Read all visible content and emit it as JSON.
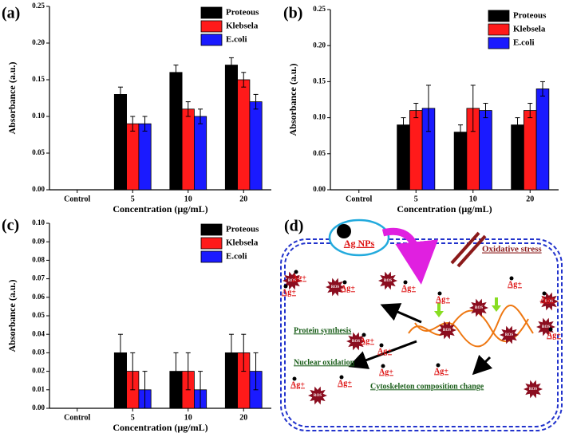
{
  "chart_data": [
    {
      "type": "bar",
      "panel_label": "(a)",
      "xlabel": "Concentration (µg/mL)",
      "ylabel": "Absorbance (a.u.)",
      "categories": [
        "Control",
        "5",
        "10",
        "20"
      ],
      "series": [
        {
          "name": "Proteous",
          "color": "#000000",
          "values": [
            0,
            0.13,
            0.16,
            0.17
          ],
          "errors": [
            0,
            0.01,
            0.01,
            0.01
          ]
        },
        {
          "name": "Klebsela",
          "color": "#ff1a1a",
          "values": [
            0,
            0.09,
            0.11,
            0.15
          ],
          "errors": [
            0,
            0.01,
            0.01,
            0.01
          ]
        },
        {
          "name": "E.coli",
          "color": "#1a1aff",
          "values": [
            0,
            0.09,
            0.1,
            0.12
          ],
          "errors": [
            0,
            0.01,
            0.01,
            0.01
          ]
        }
      ],
      "ylim": [
        0,
        0.25
      ],
      "yticks": [
        {
          "value": 0,
          "label": "0.00"
        },
        {
          "value": 0.05,
          "label": "0.05"
        },
        {
          "value": 0.1,
          "label": "0.10"
        },
        {
          "value": 0.15,
          "label": "0.15"
        },
        {
          "value": 0.2,
          "label": "0.20"
        },
        {
          "value": 0.25,
          "label": "0.25"
        }
      ],
      "legend": "top-right"
    },
    {
      "type": "bar",
      "panel_label": "(b)",
      "xlabel": "Concentration (µg/mL)",
      "ylabel": "Absorbance (a.u.)",
      "categories": [
        "Control",
        "5",
        "10",
        "20"
      ],
      "series": [
        {
          "name": "Proteous",
          "color": "#000000",
          "values": [
            0,
            0.09,
            0.08,
            0.09
          ],
          "errors": [
            0,
            0.01,
            0.01,
            0.01
          ]
        },
        {
          "name": "Klebsela",
          "color": "#ff1a1a",
          "values": [
            0,
            0.11,
            0.113,
            0.11
          ],
          "errors": [
            0,
            0.01,
            0.032,
            0.01
          ]
        },
        {
          "name": "E.coli",
          "color": "#1a1aff",
          "values": [
            0,
            0.113,
            0.11,
            0.14
          ],
          "errors": [
            0,
            0.032,
            0.01,
            0.01
          ]
        }
      ],
      "ylim": [
        0,
        0.25
      ],
      "yticks": [
        {
          "value": 0,
          "label": "0.00"
        },
        {
          "value": 0.05,
          "label": "0.05"
        },
        {
          "value": 0.1,
          "label": "0.10"
        },
        {
          "value": 0.15,
          "label": "0.15"
        },
        {
          "value": 0.2,
          "label": "0.20"
        },
        {
          "value": 0.25,
          "label": "0.25"
        }
      ],
      "legend": "top-right"
    },
    {
      "type": "bar",
      "panel_label": "(c)",
      "xlabel": "Concentration (µg/mL)",
      "ylabel": "Absorbance (a.u.)",
      "categories": [
        "Control",
        "5",
        "10",
        "20"
      ],
      "series": [
        {
          "name": "Proteous",
          "color": "#000000",
          "values": [
            0,
            0.03,
            0.02,
            0.03
          ],
          "errors": [
            0,
            0.01,
            0.01,
            0.01
          ]
        },
        {
          "name": "Klebsela",
          "color": "#ff1a1a",
          "values": [
            0,
            0.02,
            0.02,
            0.03
          ],
          "errors": [
            0,
            0.01,
            0.01,
            0.01
          ]
        },
        {
          "name": "E.coli",
          "color": "#1a1aff",
          "values": [
            0,
            0.01,
            0.01,
            0.02
          ],
          "errors": [
            0,
            0.01,
            0.01,
            0.01
          ]
        }
      ],
      "ylim": [
        0,
        0.1
      ],
      "yticks": [
        {
          "value": 0,
          "label": "0.00"
        },
        {
          "value": 0.01,
          "label": "0.01"
        },
        {
          "value": 0.02,
          "label": "0.02"
        },
        {
          "value": 0.03,
          "label": "0.03"
        },
        {
          "value": 0.04,
          "label": "0.04"
        },
        {
          "value": 0.05,
          "label": "0.05"
        },
        {
          "value": 0.06,
          "label": "0.06"
        },
        {
          "value": 0.07,
          "label": "0.07"
        },
        {
          "value": 0.08,
          "label": "0.08"
        },
        {
          "value": 0.09,
          "label": "0.09"
        },
        {
          "value": 0.1,
          "label": "0.10"
        }
      ],
      "legend": "top-right"
    }
  ],
  "diagram": {
    "label": "(d)",
    "nanoparticle": "Ag NPs",
    "stress": "Oxidative stress",
    "effects": [
      "Protein synthesis",
      "Nuclear oxidation",
      "Cytoskeleton composition change"
    ],
    "ions": [
      "Ag+",
      "Ag+",
      "Ag+",
      "Ag+",
      "Ag+",
      "Ag+",
      "Ag+",
      "Ag+",
      "Ag+",
      "Ag+",
      "Ag+",
      "Ag+",
      "Ag+",
      "Ag+"
    ],
    "ros": [
      "ROS",
      "ROS",
      "ROS",
      "ROS",
      "ROS",
      "ROS",
      "ROS",
      "ROS",
      "ROS",
      "ROS",
      "ROS"
    ]
  }
}
